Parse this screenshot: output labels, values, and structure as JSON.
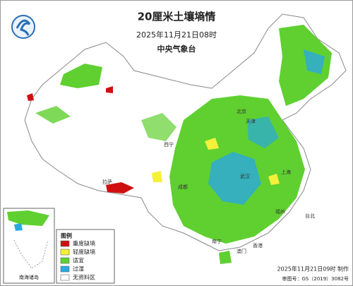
{
  "header": {
    "title": "20厘米土壤墒情",
    "time": "2025年11月21日08时",
    "issuer": "中央气象台"
  },
  "legend": {
    "title": "图例",
    "items": [
      {
        "label": "重度缺墒",
        "color": "#d01010"
      },
      {
        "label": "轻度缺墒",
        "color": "#f5f03a"
      },
      {
        "label": "适宜",
        "color": "#5fd030"
      },
      {
        "label": "过湿",
        "color": "#2aa8e0"
      },
      {
        "label": "无资料区",
        "color": "#ffffff"
      }
    ]
  },
  "inset": {
    "label": "南海诸岛"
  },
  "places": [
    "北京",
    "天津",
    "上海",
    "拉萨",
    "台北",
    "香港",
    "澳门",
    "西宁",
    "成都",
    "武汉",
    "南宁",
    "福州"
  ],
  "footer": {
    "made": "2025年11月21日09时 制作",
    "approval": "审图号：GS（2019）3082号"
  }
}
